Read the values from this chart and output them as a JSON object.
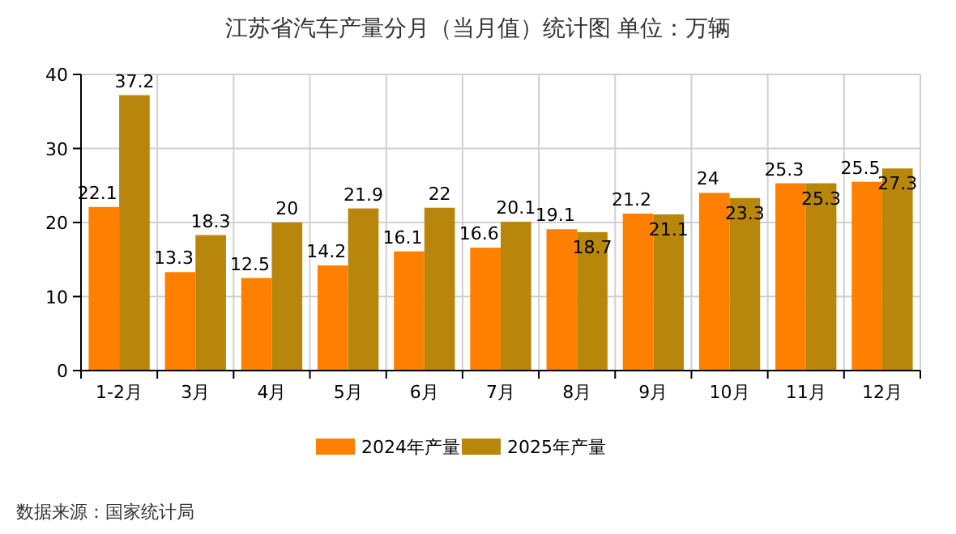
{
  "chart_data": {
    "type": "bar",
    "title": "江苏省汽车产量分月（当月值）统计图 单位：万辆",
    "categories": [
      "1-2月",
      "3月",
      "4月",
      "5月",
      "6月",
      "7月",
      "8月",
      "9月",
      "10月",
      "11月",
      "12月"
    ],
    "series": [
      {
        "name": "2024年产量",
        "color": "#ff8000",
        "values": [
          22.1,
          13.3,
          12.5,
          14.2,
          16.1,
          16.6,
          19.1,
          21.2,
          24,
          25.3,
          25.5
        ]
      },
      {
        "name": "2025年产量",
        "color": "#b8860b",
        "values": [
          37.2,
          18.3,
          20,
          21.9,
          22,
          20.1,
          18.7,
          21.1,
          23.3,
          25.3,
          27.3
        ]
      }
    ],
    "ylim": [
      0,
      40
    ],
    "yticks": [
      0,
      10,
      20,
      30,
      40
    ],
    "grid": true,
    "legend": "bottom",
    "data_labels": true,
    "annotations": [
      "数据来源：国家统计局"
    ]
  }
}
